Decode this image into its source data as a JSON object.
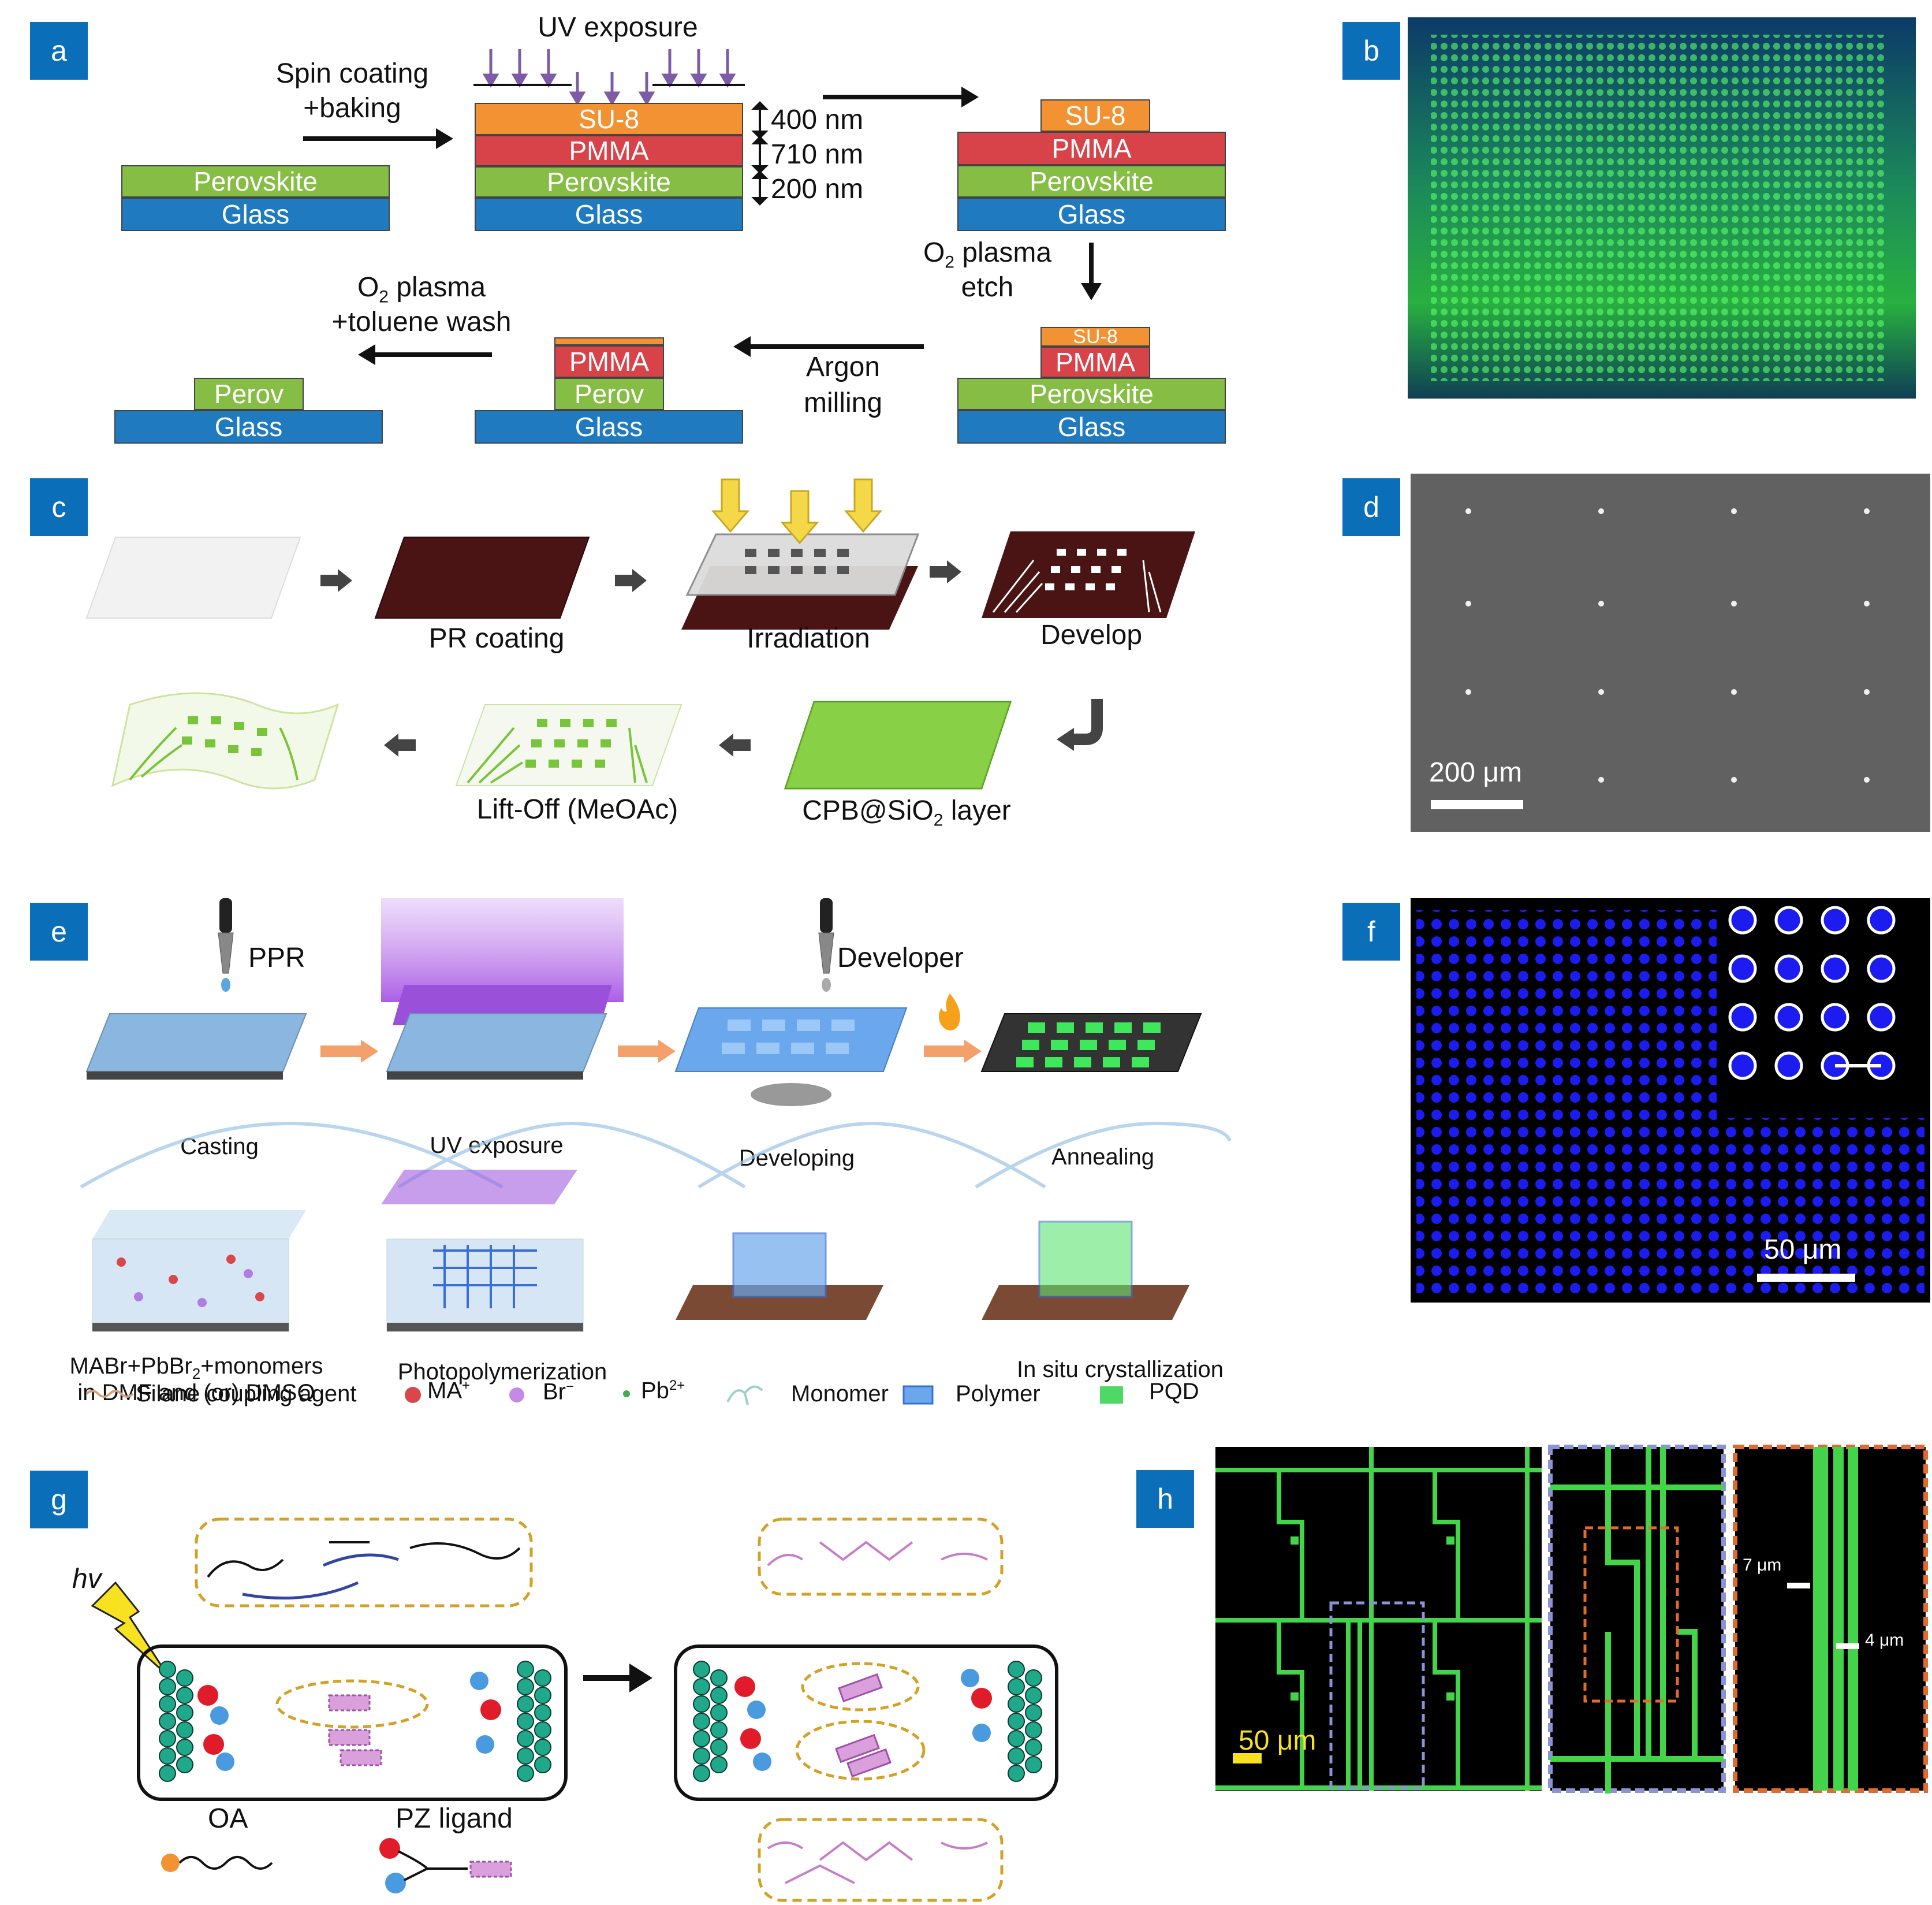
{
  "panels": {
    "a": {
      "tag": "a",
      "uv": "UV exposure",
      "spin1": "Spin coating",
      "spin2": "+baking",
      "t400": "400 nm",
      "t710": "710 nm",
      "t200": "200 nm",
      "su8": "SU-8",
      "pmma": "PMMA",
      "perovskite": "Perovskite",
      "perov": "Perov",
      "glass": "Glass",
      "o2etch_a": "O",
      "o2etch_sub": "2",
      "o2etch_b": " plasma",
      "o2etch_c": "etch",
      "argon1": "Argon",
      "argon2": "milling",
      "o2wash_a": "O",
      "o2wash_sub": "2",
      "o2wash_b": " plasma",
      "o2wash_c": "+toluene wash"
    },
    "b": {
      "tag": "b"
    },
    "c": {
      "tag": "c",
      "pr": "PR coating",
      "irr": "Irradiation",
      "dev": "Develop",
      "cpb_a": "CPB@SiO",
      "cpb_sub": "2",
      "cpb_b": " layer",
      "lift": "Lift-Off (MeOAc)"
    },
    "d": {
      "tag": "d",
      "scale": "200 μm"
    },
    "e": {
      "tag": "e",
      "ppr": "PPR",
      "developer": "Developer",
      "casting": "Casting",
      "uv": "UV exposure",
      "developing": "Developing",
      "annealing": "Annealing",
      "mabr_a": "MABr+PbBr",
      "mabr_sub": "2",
      "mabr_b": "+monomers",
      "dmf": "in DMF and (or) DMSO",
      "photo": "Photopolymerization",
      "insitu": "In situ crystallization",
      "legend": {
        "silane": "Silane coupling agent",
        "ma": "MA",
        "ma_sup": "+",
        "br": "Br",
        "br_sup": "−",
        "pb": "Pb",
        "pb_sup": "2+",
        "monomer": "Monomer",
        "polymer": "Polymer",
        "pqd": "PQD"
      }
    },
    "f": {
      "tag": "f",
      "scale": "50 μm"
    },
    "g": {
      "tag": "g",
      "hv": "hv",
      "oa": "OA",
      "pz": "PZ ligand"
    },
    "h": {
      "tag": "h",
      "scale": "50 μm",
      "w7": "7 μm",
      "w4": "4 μm"
    }
  },
  "colors": {
    "tag": "#0a6fb8",
    "glass": "#1f7ac0",
    "perovskite": "#86bd44",
    "pmma": "#d8434a",
    "su8": "#f39233",
    "uv_arrow": "#7d5ba6",
    "ligand_purple": "#c77ec9",
    "dashed_gold": "#d4a127"
  }
}
